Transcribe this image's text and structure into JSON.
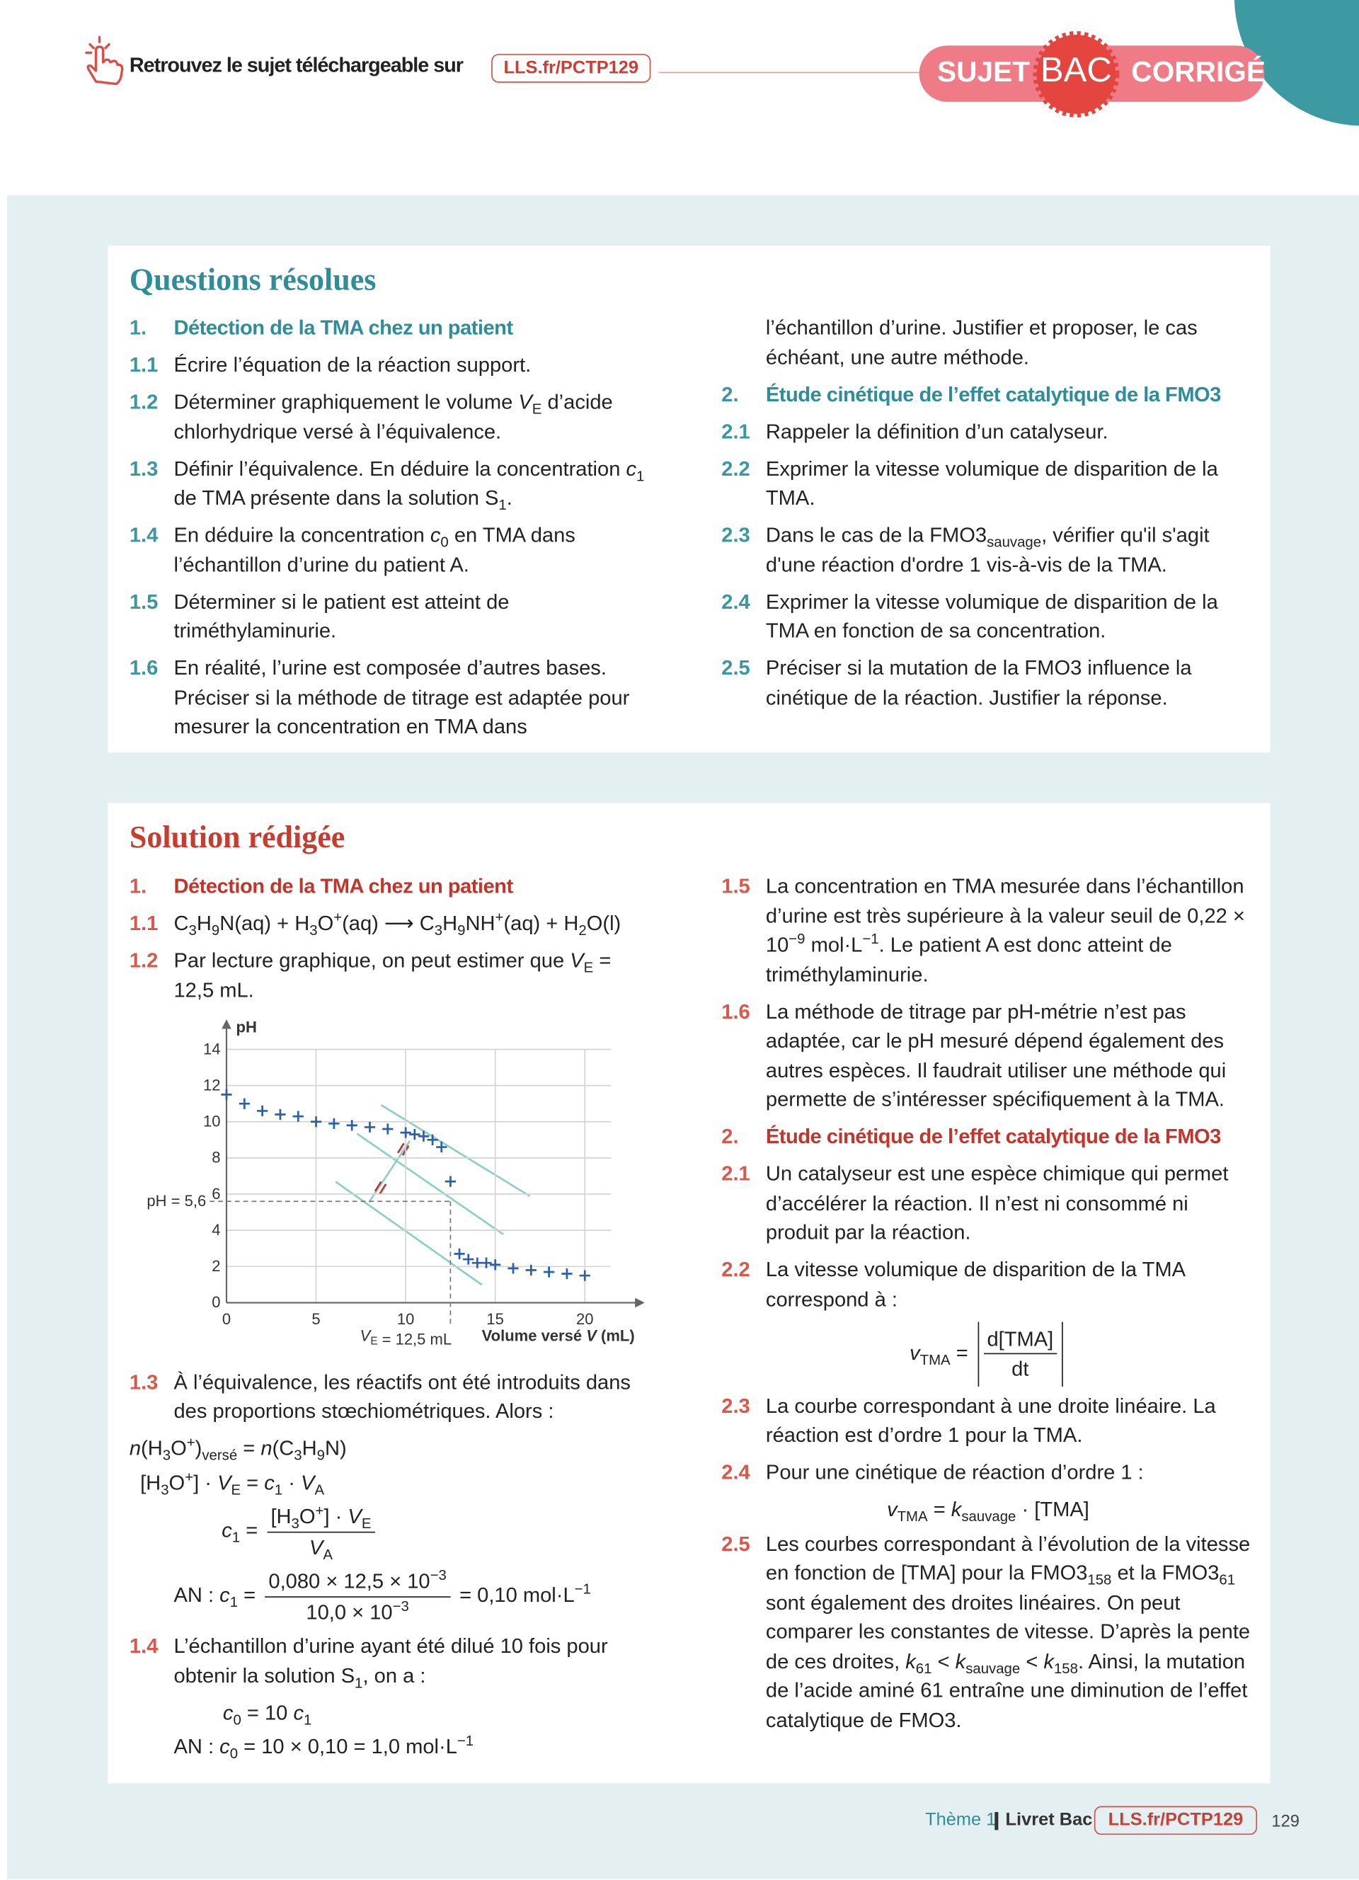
{
  "header": {
    "text": "Retrouvez le sujet téléchargeable sur",
    "link": "LLS.fr/PCTP129",
    "badge": {
      "left": "SUJET",
      "center": "BAC",
      "right": "CORRIGÉ"
    }
  },
  "questions": {
    "title": "Questions résolues",
    "left": [
      {
        "num": "1.",
        "text": "Détection de la TMA chez un patient",
        "heading": true
      },
      {
        "num": "1.1",
        "text": "Écrire l’équation de la réaction support."
      },
      {
        "num": "1.2",
        "text": [
          "Déterminer graphiquement le volume ",
          {
            "i": "V"
          },
          {
            "sub": "E"
          },
          " d’acide chlorhydrique versé à l’équivalence."
        ]
      },
      {
        "num": "1.3",
        "text": [
          "Définir l’équivalence. En déduire la concentration ",
          {
            "i": "c"
          },
          {
            "sub": "1"
          },
          " de TMA présente dans la solution S",
          {
            "sub": "1"
          },
          "."
        ]
      },
      {
        "num": "1.4",
        "text": [
          "En déduire la concentration ",
          {
            "i": "c"
          },
          {
            "sub": "0"
          },
          " en TMA dans l’échantillon d’urine du patient A."
        ]
      },
      {
        "num": "1.5",
        "text": "Déterminer si le patient est atteint de triméthylaminurie."
      },
      {
        "num": "1.6",
        "text": "En réalité, l’urine est composée d’autres bases. Préciser si la méthode de titrage est adaptée pour mesurer la concentration en TMA dans"
      }
    ],
    "right": [
      {
        "text": "l’échantillon d’urine. Justifier et proposer, le cas échéant, une autre méthode."
      },
      {
        "num": "2.",
        "text": "Étude cinétique de l’effet catalytique de la FMO3",
        "heading": true
      },
      {
        "num": "2.1",
        "text": "Rappeler la définition d’un catalyseur."
      },
      {
        "num": "2.2",
        "text": "Exprimer la vitesse volumique de disparition de la TMA."
      },
      {
        "num": "2.3",
        "text": [
          "Dans le cas de la FMO3",
          {
            "sub": "sauvage"
          },
          ", vérifier qu'il s'agit d'une réaction d'ordre 1 vis-à-vis de la TMA."
        ]
      },
      {
        "num": "2.4",
        "text": "Exprimer la vitesse volumique de disparition de la TMA en fonction de sa concentration."
      },
      {
        "num": "2.5",
        "text": "Préciser si la mutation de la FMO3 influence la cinétique de la réaction. Justifier la réponse."
      }
    ]
  },
  "solution": {
    "title": "Solution rédigée",
    "left": [
      {
        "num": "1.",
        "text": "Détection de la TMA chez un patient",
        "heading": true
      },
      {
        "num": "1.1",
        "text": [
          "C",
          {
            "sub": "3"
          },
          "H",
          {
            "sub": "9"
          },
          "N(aq) + H",
          {
            "sub": "3"
          },
          "O",
          {
            "sup": "+"
          },
          "(aq) ⟶ C",
          {
            "sub": "3"
          },
          "H",
          {
            "sub": "9"
          },
          "NH",
          {
            "sup": "+"
          },
          "(aq) + H",
          {
            "sub": "2"
          },
          "O(l)"
        ]
      },
      {
        "num": "1.2",
        "text": [
          "Par lecture graphique, on peut estimer que ",
          {
            "i": "V"
          },
          {
            "sub": "E"
          },
          " = 12,5 mL."
        ]
      }
    ],
    "left_after_chart": [
      {
        "num": "1.3",
        "text": "À l’équivalence, les réactifs ont été introduits dans des proportions stœchiométriques. Alors :"
      },
      {
        "eq": [
          {
            "i": "n"
          },
          "(H",
          {
            "sub": "3"
          },
          "O",
          {
            "sup": "+"
          },
          ")",
          {
            "sub": "versé"
          },
          " = ",
          {
            "i": "n"
          },
          "(C",
          {
            "sub": "3"
          },
          "H",
          {
            "sub": "9"
          },
          "N)"
        ]
      },
      {
        "eq": [
          "[H",
          {
            "sub": "3"
          },
          "O",
          {
            "sup": "+"
          },
          "] · ",
          {
            "i": "V"
          },
          {
            "sub": "E"
          },
          " = ",
          {
            "i": "c"
          },
          {
            "sub": "1"
          },
          " · ",
          {
            "i": "V"
          },
          {
            "sub": "A"
          }
        ]
      },
      {
        "eq": [
          {
            "i": "c"
          },
          {
            "sub": "1"
          },
          " = ",
          {
            "frac": {
              "num": [
                "[H",
                {
                  "sub": "3"
                },
                "O",
                {
                  "sup": "+"
                },
                "] · ",
                {
                  "i": "V"
                },
                {
                  "sub": "E"
                }
              ],
              "den": [
                {
                  "i": "V"
                },
                {
                  "sub": "A"
                }
              ]
            }
          }
        ]
      },
      {
        "eq": [
          "AN : ",
          {
            "i": "c"
          },
          {
            "sub": "1"
          },
          " = ",
          {
            "frac": {
              "num": [
                "0,080 × 12,5 × 10",
                {
                  "sup": "−3"
                }
              ],
              "den": [
                "10,0 × 10",
                {
                  "sup": "−3"
                }
              ]
            }
          },
          " = 0,10 mol·L",
          {
            "sup": "−1"
          }
        ]
      },
      {
        "num": "1.4",
        "text": [
          "L’échantillon d’urine ayant été dilué 10 fois pour obtenir la solution S",
          {
            "sub": "1"
          },
          ", on a :"
        ]
      },
      {
        "eq": [
          {
            "i": "c"
          },
          {
            "sub": "0"
          },
          " = 10 ",
          {
            "i": "c"
          },
          {
            "sub": "1"
          }
        ]
      },
      {
        "eq": [
          "AN : ",
          {
            "i": "c"
          },
          {
            "sub": "0"
          },
          " = 10 × 0,10 = 1,0 mol·L",
          {
            "sup": "−1"
          }
        ]
      }
    ],
    "right": [
      {
        "num": "1.5",
        "text": [
          "La concentration en TMA mesurée dans l’échantillon d’urine est très supérieure à la valeur seuil de 0,22 × 10",
          {
            "sup": "−9"
          },
          " mol·L",
          {
            "sup": "−1"
          },
          ". Le patient A est donc atteint de triméthylaminurie."
        ]
      },
      {
        "num": "1.6",
        "text": "La méthode de titrage par pH-métrie n’est pas adaptée, car le pH mesuré dépend également des autres espèces. Il faudrait utiliser une méthode qui permette de s’intéresser spécifiquement à la TMA."
      },
      {
        "num": "2.",
        "text": "Étude cinétique de l’effet catalytique de la FMO3",
        "heading": true
      },
      {
        "num": "2.1",
        "text": "Un catalyseur est une espèce chimique qui permet d’accélérer la réaction. Il n’est ni consommé ni produit par la réaction."
      },
      {
        "num": "2.2",
        "text": "La vitesse volumique de disparition de la TMA correspond à :"
      },
      {
        "eq": [
          {
            "i": "v"
          },
          {
            "sub": "TMA"
          },
          " = ",
          {
            "absfrac": {
              "num": "d[TMA]",
              "den": "dt"
            }
          }
        ]
      },
      {
        "num": "2.3",
        "text": "La courbe correspondant à une droite linéaire. La réaction est d’ordre 1 pour la TMA."
      },
      {
        "num": "2.4",
        "text": "Pour une cinétique de réaction d’ordre 1 :"
      },
      {
        "eq": [
          {
            "i": "v"
          },
          {
            "sub": "TMA"
          },
          " = ",
          {
            "i": "k"
          },
          {
            "sub": "sauvage"
          },
          " · [TMA]"
        ]
      },
      {
        "num": "2.5",
        "text": [
          "Les courbes correspondant à l’évolution de la vitesse en fonction de [TMA] pour la FMO3",
          {
            "sub": "158"
          },
          " et la FMO3",
          {
            "sub": "61"
          },
          " sont également des droites linéaires. On peut comparer les constantes de vitesse. D’après la pente de ces droites, ",
          {
            "i": "k"
          },
          {
            "sub": "61"
          },
          " < ",
          {
            "i": "k"
          },
          {
            "sub": "sauvage"
          },
          " < ",
          {
            "i": "k"
          },
          {
            "sub": "158"
          },
          ". Ainsi, la mutation de l’acide aminé 61 entraîne une diminution de l’effet catalytique de FMO3."
        ]
      }
    ]
  },
  "chart_data": {
    "type": "scatter",
    "ylabel": "pH",
    "xlabel": [
      "Volume versé ",
      {
        "i": "V"
      },
      " (mL)"
    ],
    "x": [
      0,
      1,
      2,
      3,
      4,
      5,
      6,
      7,
      8,
      9,
      10,
      10.5,
      11,
      11.5,
      12,
      12.5,
      13,
      13.5,
      14,
      14.5,
      15,
      16,
      17,
      18,
      19,
      20
    ],
    "y": [
      11.5,
      11.0,
      10.6,
      10.4,
      10.3,
      10.0,
      9.9,
      9.8,
      9.7,
      9.6,
      9.4,
      9.3,
      9.2,
      9.0,
      8.6,
      6.7,
      2.7,
      2.4,
      2.2,
      2.2,
      2.1,
      1.9,
      1.8,
      1.7,
      1.6,
      1.5
    ],
    "color": "#2d5ea8",
    "xlim": [
      0,
      22
    ],
    "ylim": [
      0,
      15
    ],
    "xticks": [
      0,
      5,
      10,
      15,
      20
    ],
    "yticks": [
      0,
      2,
      4,
      6,
      8,
      10,
      12,
      14
    ],
    "grid": true,
    "annotations": [
      {
        "y": 5.6,
        "label": "pH = 5,6"
      },
      {
        "x": 12.5,
        "label": [
          {
            "i": "V"
          },
          {
            "sub": "E"
          },
          " = 12,5 mL"
        ]
      }
    ]
  },
  "footer": {
    "theme": "Thème 1",
    "book": "Livret Bac",
    "link": "LLS.fr/PCTP129",
    "page": "129"
  }
}
